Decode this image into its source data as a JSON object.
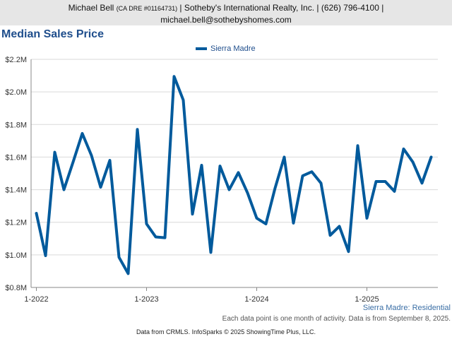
{
  "header": {
    "agent_name": "Michael Bell",
    "license": "(CA DRE #01164731)",
    "brokerage": "| Sotheby's International Realty, Inc. | (626) 796-4100 |",
    "email": "michael.bell@sothebyshomes.com"
  },
  "footer": {
    "series_note": "Sierra Madre: Residential",
    "activity_note": "Each data point is one month of activity. Data is from September 8, 2025.",
    "credits": "Data from CRMLS. InfoSparks © 2025 ShowingTime Plus, LLC."
  },
  "colors": {
    "series": "#005a9c",
    "grid": "#d9d9d9",
    "axis": "#888888"
  },
  "chart_data": {
    "type": "line",
    "title": "Median Sales Price",
    "legend_position": "top-center",
    "grid": true,
    "ylim": [
      800000,
      2200000
    ],
    "y_ticks": [
      800000,
      1000000,
      1200000,
      1400000,
      1600000,
      1800000,
      2000000,
      2200000
    ],
    "y_tick_labels": [
      "$0.8M",
      "$1.0M",
      "$1.2M",
      "$1.4M",
      "$1.6M",
      "$1.8M",
      "$2.0M",
      "$2.2M"
    ],
    "x_tick_labels": [
      "1-2022",
      "1-2023",
      "1-2024",
      "1-2025"
    ],
    "x": [
      "2022-01",
      "2022-02",
      "2022-03",
      "2022-04",
      "2022-05",
      "2022-06",
      "2022-07",
      "2022-08",
      "2022-09",
      "2022-10",
      "2022-11",
      "2022-12",
      "2023-01",
      "2023-02",
      "2023-03",
      "2023-04",
      "2023-05",
      "2023-06",
      "2023-07",
      "2023-08",
      "2023-09",
      "2023-10",
      "2023-11",
      "2023-12",
      "2024-01",
      "2024-02",
      "2024-03",
      "2024-04",
      "2024-05",
      "2024-06",
      "2024-07",
      "2024-08",
      "2024-09",
      "2024-10",
      "2024-11",
      "2024-12",
      "2025-01",
      "2025-02",
      "2025-03",
      "2025-04",
      "2025-05",
      "2025-06",
      "2025-07",
      "2025-08"
    ],
    "series": [
      {
        "name": "Sierra Madre",
        "values": [
          1255000,
          995000,
          1630000,
          1400000,
          1570000,
          1745000,
          1610000,
          1415000,
          1580000,
          985000,
          885000,
          1770000,
          1190000,
          1110000,
          1105000,
          2095000,
          1950000,
          1250000,
          1550000,
          1015000,
          1545000,
          1400000,
          1505000,
          1380000,
          1225000,
          1190000,
          1410000,
          1600000,
          1195000,
          1485000,
          1510000,
          1440000,
          1120000,
          1175000,
          1020000,
          1670000,
          1225000,
          1450000,
          1450000,
          1390000,
          1650000,
          1570000,
          1440000,
          1600000
        ]
      }
    ]
  }
}
